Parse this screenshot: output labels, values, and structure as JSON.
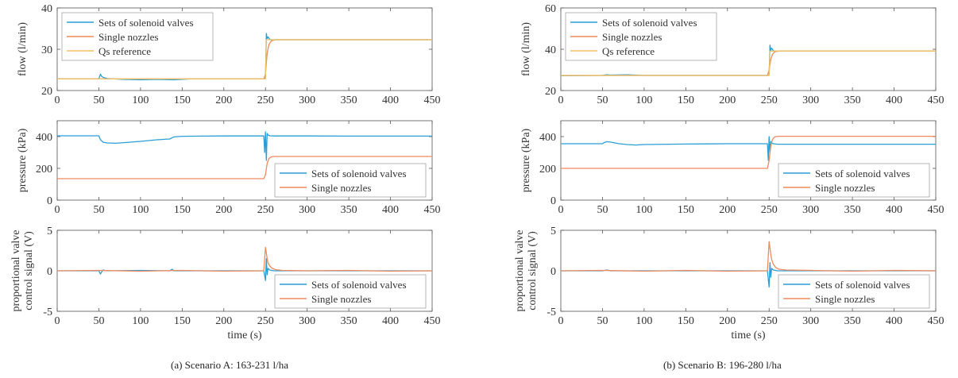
{
  "colors": {
    "solenoid": "#2a9fd6",
    "nozzles": "#f08a5d",
    "reference": "#f0c060",
    "axis": "#555555"
  },
  "captions": {
    "a": "(a) Scenario A: 163-231 l/ha",
    "b": "(b) Scenario B: 196-280 l/ha"
  },
  "chart_data": [
    {
      "id": "A-flow",
      "type": "line",
      "ylabel": "flow (l/min)",
      "xlabel": "",
      "xlim": [
        0,
        450
      ],
      "ylim": [
        20,
        40
      ],
      "xticks": [
        0,
        50,
        100,
        150,
        200,
        250,
        300,
        350,
        400,
        450
      ],
      "yticks": [
        20,
        30,
        40
      ],
      "legend": {
        "position": "top-left",
        "entries": [
          "Sets of solenoid valves",
          "Single nozzles",
          "Qs reference"
        ]
      },
      "series": [
        {
          "name": "Sets of solenoid valves",
          "color": "solenoid",
          "x": [
            0,
            50,
            52,
            53,
            55,
            60,
            80,
            100,
            120,
            140,
            160,
            200,
            248,
            250,
            251,
            252,
            253,
            255,
            258,
            262,
            270,
            300,
            350,
            400,
            450
          ],
          "y": [
            22.8,
            22.8,
            24.0,
            23.5,
            23.2,
            22.9,
            22.7,
            22.6,
            22.7,
            22.6,
            22.8,
            22.8,
            22.8,
            23.0,
            33.8,
            32.6,
            33.0,
            32.4,
            32.2,
            32.3,
            32.3,
            32.3,
            32.3,
            32.3,
            32.3
          ]
        },
        {
          "name": "Single nozzles",
          "color": "nozzles",
          "x": [
            0,
            50,
            100,
            150,
            200,
            248,
            250,
            252,
            254,
            256,
            258,
            262,
            270,
            300,
            350,
            400,
            450
          ],
          "y": [
            22.8,
            22.8,
            22.8,
            22.8,
            22.8,
            22.8,
            24.0,
            29.0,
            31.0,
            31.8,
            32.1,
            32.3,
            32.3,
            32.3,
            32.3,
            32.3,
            32.3
          ]
        },
        {
          "name": "Qs reference",
          "color": "reference",
          "x": [
            0,
            50,
            100,
            150,
            200,
            250,
            251,
            300,
            350,
            400,
            450
          ],
          "y": [
            22.8,
            22.8,
            22.8,
            22.8,
            22.8,
            22.8,
            32.3,
            32.3,
            32.3,
            32.3,
            32.3
          ]
        }
      ]
    },
    {
      "id": "A-pressure",
      "type": "line",
      "ylabel": "pressure (kPa)",
      "xlabel": "",
      "xlim": [
        0,
        450
      ],
      "ylim": [
        0,
        500
      ],
      "xticks": [
        0,
        50,
        100,
        150,
        200,
        250,
        300,
        350,
        400,
        450
      ],
      "yticks": [
        0,
        200,
        400
      ],
      "legend": {
        "position": "bottom-right",
        "entries": [
          "Sets of solenoid valves",
          "Single nozzles"
        ]
      },
      "series": [
        {
          "name": "Sets of solenoid valves",
          "color": "solenoid",
          "x": [
            0,
            50,
            52,
            55,
            60,
            70,
            80,
            100,
            120,
            135,
            140,
            150,
            200,
            248,
            249,
            250,
            251,
            252,
            253,
            255,
            260,
            300,
            350,
            400,
            450
          ],
          "y": [
            405,
            405,
            380,
            365,
            360,
            358,
            362,
            370,
            380,
            385,
            398,
            402,
            404,
            404,
            300,
            430,
            250,
            420,
            410,
            405,
            404,
            404,
            403,
            403,
            403
          ]
        },
        {
          "name": "Single nozzles",
          "color": "nozzles",
          "x": [
            0,
            50,
            100,
            150,
            200,
            248,
            250,
            252,
            254,
            256,
            258,
            262,
            270,
            300,
            350,
            400,
            450
          ],
          "y": [
            135,
            135,
            135,
            135,
            135,
            135,
            160,
            230,
            260,
            270,
            273,
            275,
            275,
            275,
            275,
            275,
            275
          ]
        }
      ]
    },
    {
      "id": "A-control",
      "type": "line",
      "ylabel": "proportional valve control signal (V)",
      "xlabel": "time (s)",
      "xlim": [
        0,
        450
      ],
      "ylim": [
        -5,
        5
      ],
      "xticks": [
        0,
        50,
        100,
        150,
        200,
        250,
        300,
        350,
        400,
        450
      ],
      "yticks": [
        -5,
        0,
        5
      ],
      "legend": {
        "position": "bottom-right",
        "entries": [
          "Sets of solenoid valves",
          "Single nozzles"
        ]
      },
      "series": [
        {
          "name": "Sets of solenoid valves",
          "color": "solenoid",
          "x": [
            0,
            50,
            52,
            53,
            55,
            60,
            100,
            135,
            138,
            140,
            200,
            248,
            250,
            251,
            252,
            253,
            255,
            260,
            300,
            450
          ],
          "y": [
            0,
            0,
            -0.4,
            -0.2,
            0.1,
            0,
            0.05,
            0,
            0.2,
            0,
            0,
            0,
            -1.2,
            1.5,
            -0.5,
            0.3,
            0.1,
            0,
            0,
            0
          ]
        },
        {
          "name": "Single nozzles",
          "color": "nozzles",
          "x": [
            0,
            50,
            100,
            150,
            200,
            248,
            250,
            251,
            252,
            253,
            255,
            258,
            262,
            270,
            300,
            350,
            400,
            450
          ],
          "y": [
            0,
            0.05,
            -0.05,
            0.05,
            -0.05,
            0,
            2.9,
            2.2,
            1.5,
            1.0,
            0.6,
            0.3,
            0.15,
            0.05,
            0,
            0.05,
            -0.05,
            0
          ]
        }
      ]
    },
    {
      "id": "B-flow",
      "type": "line",
      "ylabel": "flow (l/min)",
      "xlabel": "",
      "xlim": [
        0,
        450
      ],
      "ylim": [
        20,
        60
      ],
      "xticks": [
        0,
        50,
        100,
        150,
        200,
        250,
        300,
        350,
        400,
        450
      ],
      "yticks": [
        20,
        40,
        60
      ],
      "legend": {
        "position": "top-left",
        "entries": [
          "Sets of solenoid valves",
          "Single nozzles",
          "Qs reference"
        ]
      },
      "series": [
        {
          "name": "Sets of solenoid valves",
          "color": "solenoid",
          "x": [
            0,
            50,
            55,
            60,
            80,
            100,
            150,
            200,
            248,
            250,
            251,
            252,
            253,
            255,
            258,
            262,
            270,
            300,
            350,
            400,
            450
          ],
          "y": [
            27.2,
            27.3,
            27.6,
            27.5,
            27.6,
            27.3,
            27.3,
            27.3,
            27.3,
            27.5,
            42.0,
            39.5,
            40.5,
            39.3,
            39.0,
            39.1,
            39.1,
            39.1,
            39.1,
            39.1,
            39.1
          ]
        },
        {
          "name": "Single nozzles",
          "color": "nozzles",
          "x": [
            0,
            50,
            100,
            150,
            200,
            248,
            250,
            252,
            254,
            256,
            258,
            262,
            270,
            300,
            350,
            400,
            450
          ],
          "y": [
            27.3,
            27.3,
            27.3,
            27.3,
            27.3,
            27.3,
            30.0,
            35.0,
            37.5,
            38.5,
            38.9,
            39.1,
            39.1,
            39.1,
            39.1,
            39.1,
            39.1
          ]
        },
        {
          "name": "Qs reference",
          "color": "reference",
          "x": [
            0,
            50,
            100,
            150,
            200,
            250,
            251,
            300,
            350,
            400,
            450
          ],
          "y": [
            27.3,
            27.3,
            27.3,
            27.3,
            27.3,
            27.3,
            39.1,
            39.1,
            39.1,
            39.1,
            39.1
          ]
        }
      ]
    },
    {
      "id": "B-pressure",
      "type": "line",
      "ylabel": "pressure (kPa)",
      "xlabel": "",
      "xlim": [
        0,
        450
      ],
      "ylim": [
        0,
        500
      ],
      "xticks": [
        0,
        50,
        100,
        150,
        200,
        250,
        300,
        350,
        400,
        450
      ],
      "yticks": [
        0,
        200,
        400
      ],
      "legend": {
        "position": "bottom-right",
        "entries": [
          "Sets of solenoid valves",
          "Single nozzles"
        ]
      },
      "series": [
        {
          "name": "Sets of solenoid valves",
          "color": "solenoid",
          "x": [
            0,
            50,
            52,
            55,
            60,
            65,
            70,
            80,
            90,
            100,
            150,
            200,
            248,
            249,
            250,
            251,
            252,
            253,
            255,
            260,
            300,
            350,
            400,
            450
          ],
          "y": [
            355,
            355,
            362,
            368,
            365,
            360,
            355,
            350,
            347,
            350,
            353,
            355,
            355,
            250,
            400,
            300,
            370,
            360,
            355,
            352,
            352,
            352,
            352,
            352
          ]
        },
        {
          "name": "Single nozzles",
          "color": "nozzles",
          "x": [
            0,
            50,
            100,
            150,
            200,
            248,
            250,
            252,
            254,
            256,
            258,
            262,
            270,
            300,
            350,
            400,
            450
          ],
          "y": [
            200,
            200,
            200,
            200,
            200,
            200,
            250,
            340,
            380,
            395,
            400,
            402,
            402,
            402,
            402,
            402,
            402
          ]
        }
      ]
    },
    {
      "id": "B-control",
      "type": "line",
      "ylabel": "proportional valve control signal (V)",
      "xlabel": "time (s)",
      "xlim": [
        0,
        450
      ],
      "ylim": [
        -5,
        5
      ],
      "xticks": [
        0,
        50,
        100,
        150,
        200,
        250,
        300,
        350,
        400,
        450
      ],
      "yticks": [
        -5,
        0,
        5
      ],
      "legend": {
        "position": "bottom-right",
        "entries": [
          "Sets of solenoid valves",
          "Single nozzles"
        ]
      },
      "series": [
        {
          "name": "Sets of solenoid valves",
          "color": "solenoid",
          "x": [
            0,
            50,
            55,
            60,
            100,
            200,
            248,
            250,
            251,
            252,
            253,
            255,
            260,
            300,
            450
          ],
          "y": [
            0,
            0,
            0.1,
            0,
            0,
            0,
            0,
            -2.0,
            1.0,
            -0.8,
            0.3,
            0.1,
            0,
            0,
            0
          ]
        },
        {
          "name": "Single nozzles",
          "color": "nozzles",
          "x": [
            0,
            50,
            100,
            150,
            200,
            248,
            250,
            251,
            252,
            253,
            255,
            258,
            262,
            270,
            300,
            350,
            400,
            450
          ],
          "y": [
            0,
            0.05,
            -0.05,
            0.05,
            -0.05,
            0,
            3.6,
            2.8,
            2.0,
            1.4,
            0.8,
            0.4,
            0.2,
            0.1,
            0.05,
            -0.05,
            0.05,
            0
          ]
        }
      ]
    }
  ]
}
